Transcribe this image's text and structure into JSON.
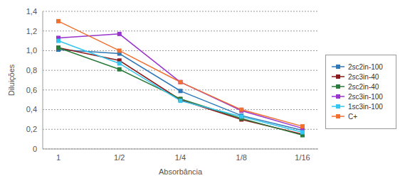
{
  "chart_data": {
    "type": "line",
    "x_label": "Absorbância",
    "y_label": "Diluições",
    "categories": [
      "1",
      "1/2",
      "1/4",
      "1/8",
      "1/16"
    ],
    "ylim": [
      0,
      1.4
    ],
    "yticks": [
      0,
      {
        "value": 0.2,
        "label": "0,2"
      },
      {
        "value": 0.4,
        "label": "0,4"
      },
      {
        "value": 0.6,
        "label": "0,6"
      },
      {
        "value": 0.8,
        "label": "0,8"
      },
      {
        "value": 1.0,
        "label": "1,0"
      },
      {
        "value": 1.2,
        "label": "1,2"
      },
      {
        "value": 1.4,
        "label": "1,4"
      }
    ],
    "grid": true,
    "legend": "right",
    "marker": "square",
    "series": [
      {
        "name": "2sc2in-100",
        "color": "#2e78b7",
        "values": [
          1.01,
          0.97,
          0.59,
          0.34,
          0.19
        ]
      },
      {
        "name": "2sc3in-40",
        "color": "#8b1a1a",
        "values": [
          1.03,
          0.9,
          0.5,
          0.3,
          0.15
        ]
      },
      {
        "name": "2sc2in-40",
        "color": "#2a7a3a",
        "values": [
          1.03,
          0.81,
          0.51,
          0.31,
          0.14
        ]
      },
      {
        "name": "2sc3in-100",
        "color": "#9933cc",
        "values": [
          1.13,
          1.17,
          0.68,
          0.39,
          0.21
        ]
      },
      {
        "name": "1sc3in-100",
        "color": "#33c6f0",
        "values": [
          1.1,
          0.87,
          0.49,
          0.33,
          0.17
        ]
      },
      {
        "name": "C+",
        "color": "#f07030",
        "values": [
          1.3,
          1.0,
          0.68,
          0.4,
          0.23
        ]
      }
    ]
  }
}
